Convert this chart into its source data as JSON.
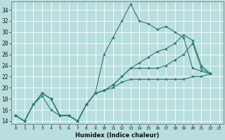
{
  "title": "",
  "xlabel": "Humidex (Indice chaleur)",
  "bg_color": "#b8dede",
  "grid_color": "#ffffff",
  "line_color": "#2d7a6e",
  "xlim": [
    -0.5,
    23.5
  ],
  "ylim": [
    13.5,
    35.5
  ],
  "xticks": [
    0,
    1,
    2,
    3,
    4,
    5,
    6,
    7,
    8,
    9,
    10,
    11,
    12,
    13,
    14,
    15,
    16,
    17,
    18,
    19,
    20,
    21,
    22,
    23
  ],
  "yticks": [
    14,
    16,
    18,
    20,
    22,
    24,
    26,
    28,
    30,
    32,
    34
  ],
  "series": [
    [
      15,
      14,
      17,
      18.5,
      16,
      15,
      15,
      14,
      17,
      19,
      26,
      29,
      32,
      35,
      32,
      31.5,
      30.5,
      31,
      30,
      29,
      23.5,
      23,
      22.5
    ],
    [
      15,
      14,
      17,
      19,
      18,
      15,
      15,
      14,
      17,
      19,
      19.5,
      20,
      21,
      21.5,
      21.5,
      21.5,
      21.5,
      21.5,
      21.5,
      21.5,
      22,
      22,
      22.5
    ],
    [
      15,
      14,
      17,
      19,
      18,
      15,
      15,
      14,
      17,
      19,
      19.5,
      20.5,
      22,
      23.5,
      23.5,
      23.5,
      23.5,
      24,
      25,
      26,
      28,
      23.5,
      22.5
    ],
    [
      15,
      14,
      17,
      19,
      18,
      15,
      15,
      14,
      17,
      19,
      19.5,
      20.5,
      22,
      23.5,
      24.5,
      25.5,
      26.5,
      27,
      28,
      29.5,
      28.5,
      24,
      22.5
    ]
  ]
}
